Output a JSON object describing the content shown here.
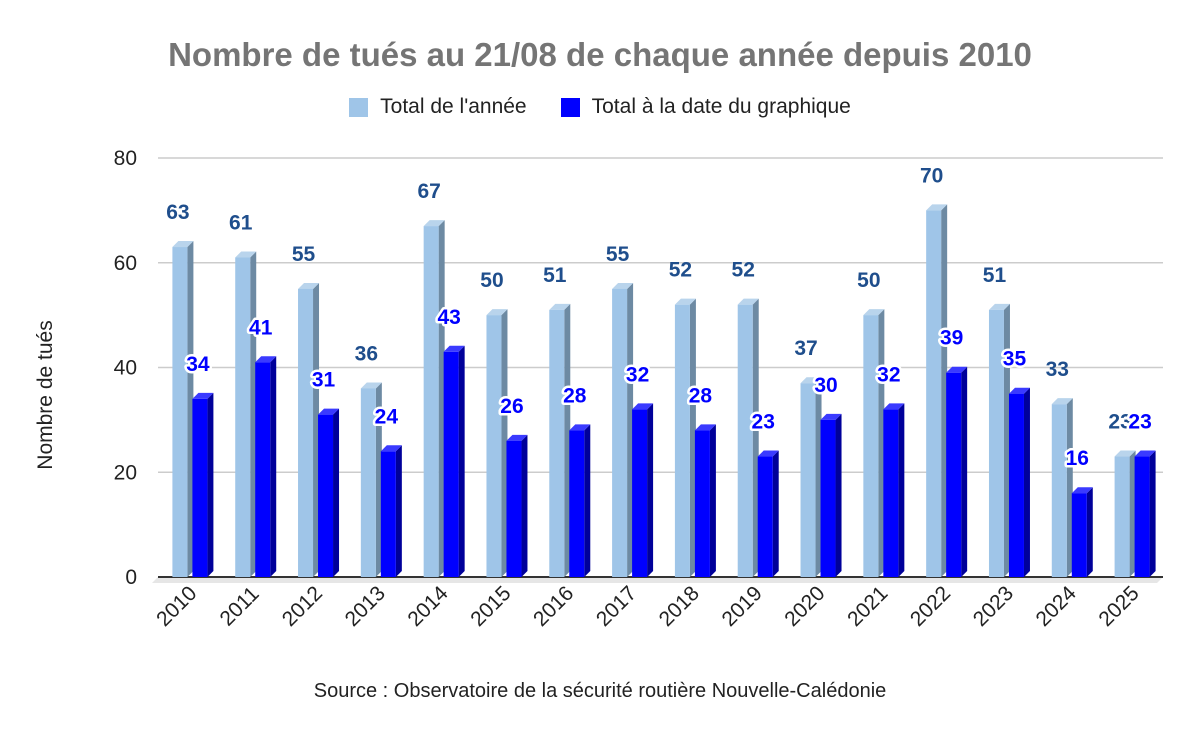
{
  "chart_data": {
    "type": "bar",
    "title": "Nombre de tués au 21/08 de chaque année depuis 2010",
    "ylabel": "Nombre de tués",
    "xlabel": "",
    "source": "Source : Observatoire de la sécurité routière Nouvelle-Calédonie",
    "ylim": [
      0,
      80
    ],
    "yticks": [
      0,
      20,
      40,
      60,
      80
    ],
    "grid": true,
    "legend_position": "top",
    "categories": [
      "2010",
      "2011",
      "2012",
      "2013",
      "2014",
      "2015",
      "2016",
      "2017",
      "2018",
      "2019",
      "2020",
      "2021",
      "2022",
      "2023",
      "2024",
      "2025"
    ],
    "series": [
      {
        "name": "Total de l'année",
        "color": "#9fc5e8",
        "values": [
          63,
          61,
          55,
          36,
          67,
          50,
          51,
          55,
          52,
          52,
          37,
          50,
          70,
          51,
          33,
          23
        ]
      },
      {
        "name": "Total à la date du graphique",
        "color": "#0000ff",
        "values": [
          34,
          41,
          31,
          24,
          43,
          26,
          28,
          32,
          28,
          23,
          30,
          32,
          39,
          35,
          16,
          23
        ]
      }
    ]
  }
}
